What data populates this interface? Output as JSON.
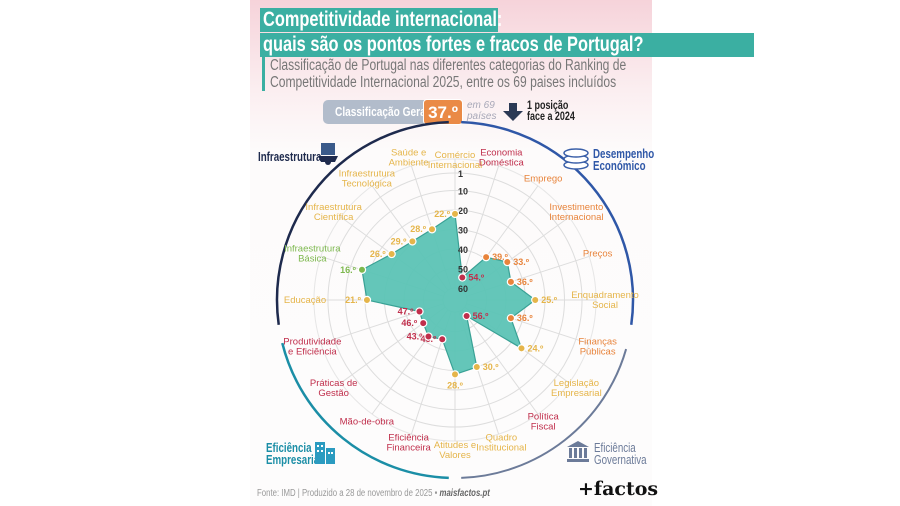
{
  "header": {
    "title_line1": "Competitividade internacional:",
    "title_line2": "quais são os pontos fortes e fracos de Portugal?",
    "subtitle_line1": "Classificação de Portugal nas diferentes categorias do Ranking de",
    "subtitle_line2": "Competitividade Internacional 2025, entre os 69 paises incluídos"
  },
  "summary": {
    "label": "Classificação Geral",
    "rank": "37.º",
    "of_line1": "em 69",
    "of_line2": "países",
    "change_icon": "arrow-down-icon",
    "change_line1": "1 posição",
    "change_line2": "face a 2024"
  },
  "groups": {
    "infra": {
      "label": "Infraestrutura",
      "icon": "building-gear-icon",
      "color": "#1e2a4d"
    },
    "econ": {
      "label_line1": "Desempenho",
      "label_line2": "Económico",
      "icon": "coins-icon",
      "color": "#2f57a7"
    },
    "gov": {
      "label_line1": "Eficiência",
      "label_line2": "Governativa",
      "icon": "government-building-icon",
      "color": "#6c7b99"
    },
    "emp": {
      "label_line1": "Eficiência",
      "label_line2": "Empresarial",
      "icon": "office-buildings-icon",
      "color": "#1b8ea6"
    }
  },
  "chart_data": {
    "type": "radar",
    "title": "",
    "axis_reversed": true,
    "axis_range": [
      60,
      1
    ],
    "axis_ticks": [
      "1",
      "10",
      "20",
      "30",
      "40",
      "50",
      "60"
    ],
    "grid": true,
    "fill_color": "#5cc4b6",
    "tier_colors": {
      "1-20": "#7db84e",
      "21-30": "#e5b54a",
      "31-40": "#e8843c",
      "41-69": "#c02f4c"
    },
    "categories": [
      "Comércio Internacional",
      "Economia Doméstica",
      "Emprego",
      "Investimento Internacional",
      "Preços",
      "Enquadramento Social",
      "Finanças Públicas",
      "Legislação Empresarial",
      "Política Fiscal",
      "Quadro Institucional",
      "Atitudes e Valores",
      "Eficiência Financeira",
      "Mão-de-obra",
      "Práticas de Gestão",
      "Produtividade e Eficiência",
      "Educação",
      "Infraestrutura Básica",
      "Infraestrutura Científica",
      "Infraestrutura Tecnológica",
      "Saúde e Ambiente"
    ],
    "values": [
      22,
      54,
      39,
      33,
      36,
      25,
      36,
      24,
      56,
      30,
      28,
      45,
      43,
      46,
      47,
      21,
      16,
      26,
      29,
      28
    ],
    "value_labels": [
      "22.º",
      "54.º",
      "39.º",
      "33.º",
      "36.º",
      "25.º",
      "36.º",
      "24.º",
      "56.º",
      "30.º",
      "28.º",
      "45.º",
      "43.º",
      "46.º",
      "47.º",
      "21.º",
      "16.º",
      "26.º",
      "29.º",
      "28.º"
    ]
  },
  "footer": {
    "source": "Fonte: IMD | Produzido a 28 de novembro de 2025 • ",
    "site": "maisfactos.pt",
    "logo": "+factos"
  }
}
